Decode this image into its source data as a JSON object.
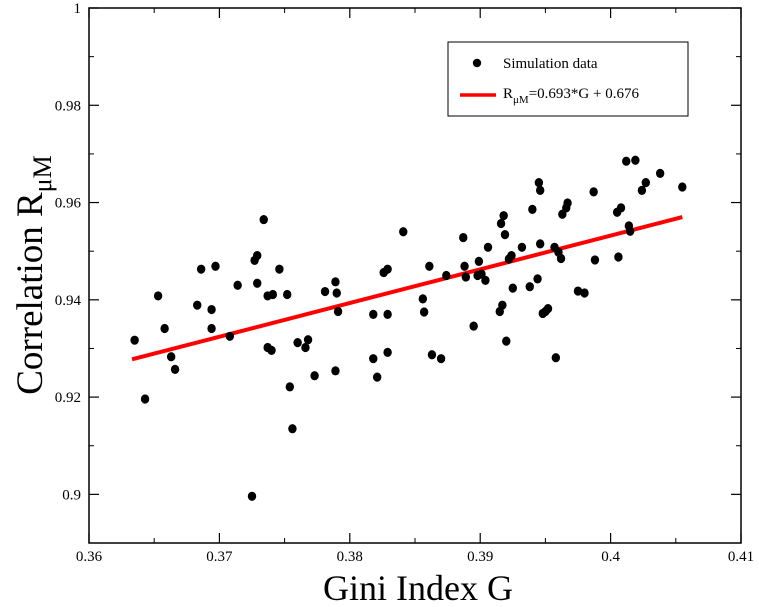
{
  "chart_data": {
    "type": "scatter",
    "xlabel": "Gini Index G",
    "ylabel": {
      "main": "Correlation R",
      "sub": "μM"
    },
    "xlim": [
      0.36,
      0.41
    ],
    "ylim": [
      0.89,
      1.0
    ],
    "x_ticks": [
      0.36,
      0.37,
      0.38,
      0.39,
      0.4,
      0.41
    ],
    "x_tick_labels": [
      "0.36",
      "0.37",
      "0.38",
      "0.39",
      "0.4",
      "0.41"
    ],
    "y_ticks": [
      0.9,
      0.92,
      0.94,
      0.96,
      0.98,
      1.0
    ],
    "y_tick_labels": [
      "0.9",
      "0.92",
      "0.94",
      "0.96",
      "0.98",
      "1"
    ],
    "grid": false,
    "legend_position": "top-right",
    "series": [
      {
        "name": "Simulation data",
        "kind": "scatter",
        "color": "#000000",
        "points": [
          [
            0.3635,
            0.9317
          ],
          [
            0.3643,
            0.9196
          ],
          [
            0.3653,
            0.9408
          ],
          [
            0.3658,
            0.9341
          ],
          [
            0.3663,
            0.9283
          ],
          [
            0.3666,
            0.9257
          ],
          [
            0.3683,
            0.9389
          ],
          [
            0.3686,
            0.9463
          ],
          [
            0.3694,
            0.938
          ],
          [
            0.3694,
            0.9341
          ],
          [
            0.3697,
            0.9469
          ],
          [
            0.3708,
            0.9325
          ],
          [
            0.3714,
            0.943
          ],
          [
            0.3725,
            0.8996
          ],
          [
            0.3727,
            0.9481
          ],
          [
            0.3729,
            0.9491
          ],
          [
            0.3729,
            0.9434
          ],
          [
            0.3734,
            0.9565
          ],
          [
            0.3737,
            0.9408
          ],
          [
            0.3737,
            0.9302
          ],
          [
            0.374,
            0.9296
          ],
          [
            0.3741,
            0.9411
          ],
          [
            0.3746,
            0.9463
          ],
          [
            0.3752,
            0.9411
          ],
          [
            0.3754,
            0.9221
          ],
          [
            0.3756,
            0.9135
          ],
          [
            0.376,
            0.9312
          ],
          [
            0.3766,
            0.9302
          ],
          [
            0.3768,
            0.9318
          ],
          [
            0.3773,
            0.9244
          ],
          [
            0.3781,
            0.9417
          ],
          [
            0.3789,
            0.9437
          ],
          [
            0.3789,
            0.9254
          ],
          [
            0.379,
            0.9414
          ],
          [
            0.3791,
            0.9376
          ],
          [
            0.3818,
            0.937
          ],
          [
            0.3818,
            0.9279
          ],
          [
            0.3821,
            0.9241
          ],
          [
            0.3826,
            0.9456
          ],
          [
            0.3829,
            0.9463
          ],
          [
            0.3829,
            0.937
          ],
          [
            0.3829,
            0.9292
          ],
          [
            0.3841,
            0.954
          ],
          [
            0.3856,
            0.9402
          ],
          [
            0.3857,
            0.9375
          ],
          [
            0.3861,
            0.9469
          ],
          [
            0.3863,
            0.9287
          ],
          [
            0.387,
            0.9279
          ],
          [
            0.3874,
            0.945
          ],
          [
            0.3887,
            0.9528
          ],
          [
            0.3888,
            0.9469
          ],
          [
            0.3889,
            0.9447
          ],
          [
            0.3895,
            0.9346
          ],
          [
            0.3898,
            0.945
          ],
          [
            0.3899,
            0.9479
          ],
          [
            0.3901,
            0.9453
          ],
          [
            0.3904,
            0.944
          ],
          [
            0.3906,
            0.9508
          ],
          [
            0.3915,
            0.9376
          ],
          [
            0.3916,
            0.9557
          ],
          [
            0.3917,
            0.9389
          ],
          [
            0.3918,
            0.9573
          ],
          [
            0.3919,
            0.9534
          ],
          [
            0.392,
            0.9315
          ],
          [
            0.3922,
            0.9484
          ],
          [
            0.3924,
            0.9491
          ],
          [
            0.3925,
            0.9424
          ],
          [
            0.3932,
            0.9508
          ],
          [
            0.3938,
            0.9427
          ],
          [
            0.394,
            0.9586
          ],
          [
            0.3944,
            0.9443
          ],
          [
            0.3945,
            0.9641
          ],
          [
            0.3946,
            0.9625
          ],
          [
            0.3946,
            0.9515
          ],
          [
            0.3948,
            0.9372
          ],
          [
            0.395,
            0.9376
          ],
          [
            0.3952,
            0.9382
          ],
          [
            0.3957,
            0.9508
          ],
          [
            0.3958,
            0.9281
          ],
          [
            0.396,
            0.9498
          ],
          [
            0.3962,
            0.9485
          ],
          [
            0.3963,
            0.9576
          ],
          [
            0.3966,
            0.9589
          ],
          [
            0.3967,
            0.9599
          ],
          [
            0.3975,
            0.9418
          ],
          [
            0.398,
            0.9414
          ],
          [
            0.3987,
            0.9622
          ],
          [
            0.3988,
            0.9482
          ],
          [
            0.4005,
            0.958
          ],
          [
            0.4006,
            0.9488
          ],
          [
            0.4008,
            0.9589
          ],
          [
            0.4012,
            0.9685
          ],
          [
            0.4014,
            0.9552
          ],
          [
            0.4015,
            0.9541
          ],
          [
            0.4019,
            0.9687
          ],
          [
            0.4024,
            0.9625
          ],
          [
            0.4027,
            0.9641
          ],
          [
            0.4038,
            0.966
          ],
          [
            0.4055,
            0.9632
          ]
        ]
      },
      {
        "name": "R_μM=0.693*G + 0.676",
        "kind": "line",
        "color": "#ff0000",
        "slope": 0.693,
        "intercept": 0.676,
        "x_range": [
          0.3633,
          0.4055
        ]
      }
    ],
    "legend": {
      "scatter_label": "Simulation data",
      "fit_label_prefix": "R",
      "fit_label_sub": "μM",
      "fit_label_suffix": "=0.693*G + 0.676"
    }
  }
}
